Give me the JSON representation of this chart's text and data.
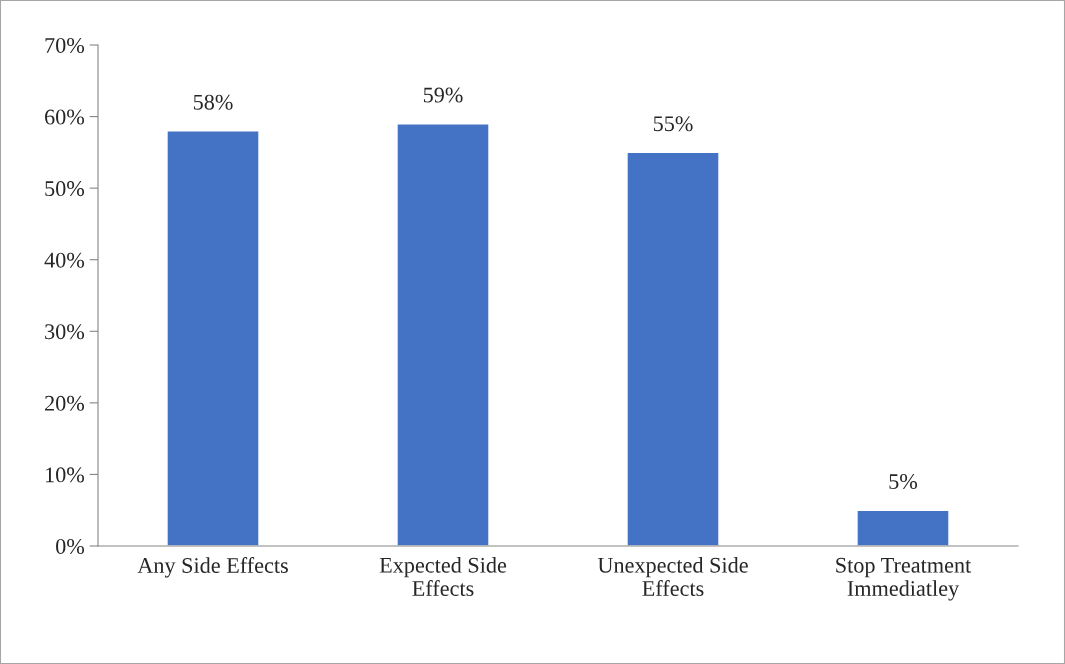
{
  "chart_data": {
    "type": "bar",
    "categories": [
      "Any Side Effects",
      "Expected Side\nEffects",
      "Unexpected Side\nEffects",
      "Stop Treatment\nImmediatley"
    ],
    "values": [
      58,
      59,
      55,
      5
    ],
    "value_labels": [
      "58%",
      "59%",
      "55%",
      "5%"
    ],
    "color": "#4472c4",
    "ylim": [
      0,
      70
    ],
    "yticks": [
      {
        "value": 0,
        "label": "0%"
      },
      {
        "value": 10,
        "label": "10%"
      },
      {
        "value": 20,
        "label": "20%"
      },
      {
        "value": 30,
        "label": "30%"
      },
      {
        "value": 40,
        "label": "40%"
      },
      {
        "value": 50,
        "label": "50%"
      },
      {
        "value": 60,
        "label": "60%"
      },
      {
        "value": 70,
        "label": "70%"
      }
    ],
    "grid": false,
    "legend": false
  }
}
